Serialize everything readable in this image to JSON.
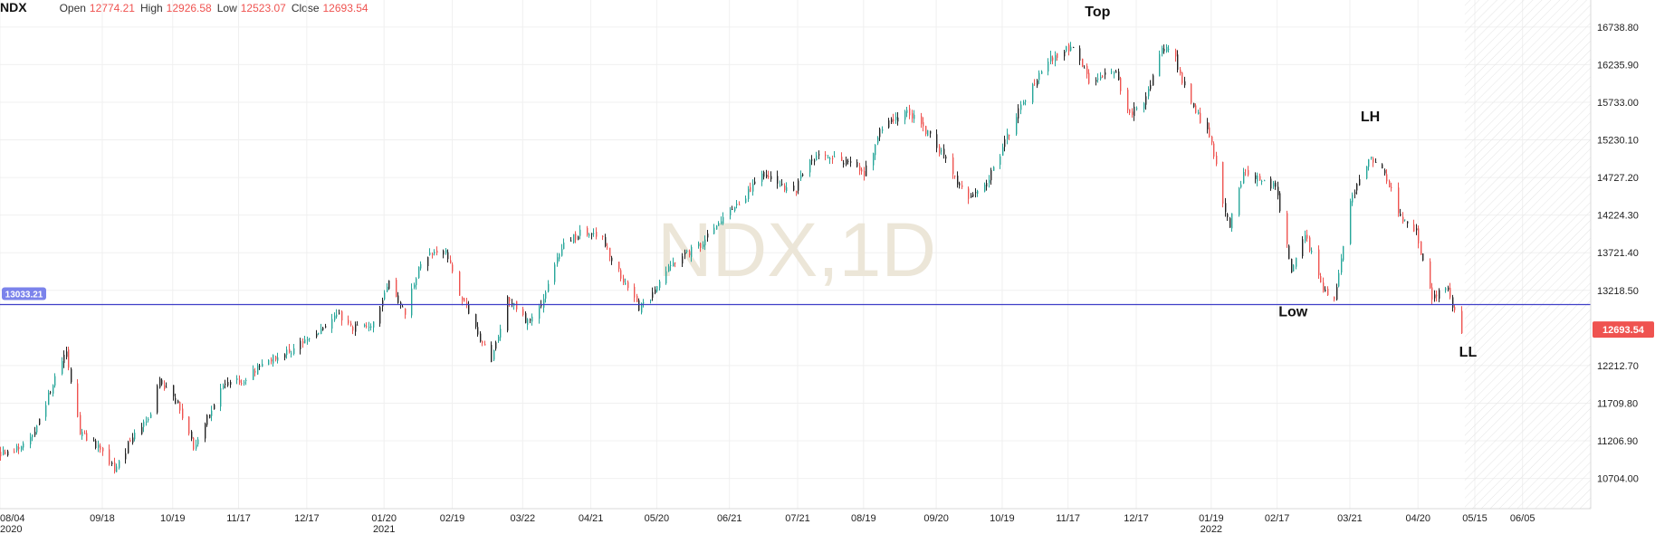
{
  "header": {
    "symbol": "NDX",
    "open_label": "Open",
    "open": "12774.21",
    "high_label": "High",
    "high": "12926.58",
    "low_label": "Low",
    "low": "12523.07",
    "close_label": "Close",
    "close": "12693.54"
  },
  "colors": {
    "up": "#26a69a",
    "down": "#ef5350",
    "neutral": "#222222",
    "level_line": "#3f3fc7",
    "level_badge": "#7b83eb",
    "price_badge": "#ef5350",
    "grid": "#f0f0f0",
    "watermark": "#ece6d8"
  },
  "chart_data": {
    "type": "candlestick",
    "symbol": "NDX",
    "watermark": "NDX,1D",
    "y_ticks": [
      "16738.80",
      "16235.90",
      "15733.00",
      "15230.10",
      "14727.20",
      "14224.30",
      "13721.40",
      "13218.50",
      "12212.70",
      "11709.80",
      "11206.90",
      "10704.00"
    ],
    "ylim": [
      10300,
      17100
    ],
    "x_ticks": [
      {
        "label": "08/04",
        "sub": "2020",
        "date": "2020-08-04"
      },
      {
        "label": "09/18",
        "sub": "",
        "date": "2020-09-18"
      },
      {
        "label": "10/19",
        "sub": "",
        "date": "2020-10-19"
      },
      {
        "label": "11/17",
        "sub": "",
        "date": "2020-11-17"
      },
      {
        "label": "12/17",
        "sub": "",
        "date": "2020-12-17"
      },
      {
        "label": "01/20",
        "sub": "2021",
        "date": "2021-01-20"
      },
      {
        "label": "02/19",
        "sub": "",
        "date": "2021-02-19"
      },
      {
        "label": "03/22",
        "sub": "",
        "date": "2021-03-22"
      },
      {
        "label": "04/21",
        "sub": "",
        "date": "2021-04-21"
      },
      {
        "label": "05/20",
        "sub": "",
        "date": "2021-05-20"
      },
      {
        "label": "06/21",
        "sub": "",
        "date": "2021-06-21"
      },
      {
        "label": "07/21",
        "sub": "",
        "date": "2021-07-21"
      },
      {
        "label": "08/19",
        "sub": "",
        "date": "2021-08-19"
      },
      {
        "label": "09/20",
        "sub": "",
        "date": "2021-09-20"
      },
      {
        "label": "10/19",
        "sub": "",
        "date": "2021-10-19"
      },
      {
        "label": "11/17",
        "sub": "",
        "date": "2021-11-17"
      },
      {
        "label": "12/17",
        "sub": "",
        "date": "2021-12-17"
      },
      {
        "label": "01/19",
        "sub": "2022",
        "date": "2022-01-19"
      },
      {
        "label": "02/17",
        "sub": "",
        "date": "2022-02-17"
      },
      {
        "label": "03/21",
        "sub": "",
        "date": "2022-03-21"
      },
      {
        "label": "04/20",
        "sub": "",
        "date": "2022-04-20"
      },
      {
        "label": "05/15",
        "sub": "",
        "date": "2022-05-15"
      },
      {
        "label": "06/05",
        "sub": "",
        "date": "2022-06-05"
      }
    ],
    "x_range": [
      "2020-08-04",
      "2022-07-05"
    ],
    "last_date": "2022-05-09",
    "close_path": [
      [
        "2020-08-04",
        11050
      ],
      [
        "2020-08-10",
        11080
      ],
      [
        "2020-08-18",
        11300
      ],
      [
        "2020-08-25",
        11800
      ],
      [
        "2020-09-02",
        12400
      ],
      [
        "2020-09-08",
        11300
      ],
      [
        "2020-09-14",
        11200
      ],
      [
        "2020-09-23",
        10800
      ],
      [
        "2020-09-30",
        11200
      ],
      [
        "2020-10-08",
        11500
      ],
      [
        "2020-10-13",
        12000
      ],
      [
        "2020-10-21",
        11700
      ],
      [
        "2020-10-28",
        11100
      ],
      [
        "2020-11-03",
        11500
      ],
      [
        "2020-11-09",
        11900
      ],
      [
        "2020-11-20",
        12050
      ],
      [
        "2020-12-01",
        12300
      ],
      [
        "2020-12-10",
        12400
      ],
      [
        "2020-12-18",
        12600
      ],
      [
        "2020-12-31",
        12900
      ],
      [
        "2021-01-06",
        12700
      ],
      [
        "2021-01-15",
        12800
      ],
      [
        "2021-01-22",
        13300
      ],
      [
        "2021-01-29",
        12900
      ],
      [
        "2021-02-05",
        13600
      ],
      [
        "2021-02-15",
        13800
      ],
      [
        "2021-02-22",
        13200
      ],
      [
        "2021-03-04",
        12500
      ],
      [
        "2021-03-08",
        12300
      ],
      [
        "2021-03-15",
        13100
      ],
      [
        "2021-03-24",
        12800
      ],
      [
        "2021-03-31",
        13100
      ],
      [
        "2021-04-08",
        13800
      ],
      [
        "2021-04-16",
        14000
      ],
      [
        "2021-04-26",
        13900
      ],
      [
        "2021-05-04",
        13400
      ],
      [
        "2021-05-12",
        13000
      ],
      [
        "2021-05-19",
        13200
      ],
      [
        "2021-05-27",
        13600
      ],
      [
        "2021-06-07",
        13800
      ],
      [
        "2021-06-16",
        14100
      ],
      [
        "2021-06-25",
        14400
      ],
      [
        "2021-07-07",
        14800
      ],
      [
        "2021-07-19",
        14500
      ],
      [
        "2021-07-26",
        15000
      ],
      [
        "2021-08-06",
        15000
      ],
      [
        "2021-08-19",
        14800
      ],
      [
        "2021-08-27",
        15400
      ],
      [
        "2021-09-07",
        15600
      ],
      [
        "2021-09-14",
        15400
      ],
      [
        "2021-09-21",
        15100
      ],
      [
        "2021-09-30",
        14600
      ],
      [
        "2021-10-04",
        14400
      ],
      [
        "2021-10-13",
        14700
      ],
      [
        "2021-10-20",
        15200
      ],
      [
        "2021-10-29",
        15800
      ],
      [
        "2021-11-09",
        16300
      ],
      [
        "2021-11-19",
        16500
      ],
      [
        "2021-11-26",
        16000
      ],
      [
        "2021-12-01",
        16100
      ],
      [
        "2021-12-08",
        16100
      ],
      [
        "2021-12-14",
        15600
      ],
      [
        "2021-12-20",
        15700
      ],
      [
        "2021-12-28",
        16500
      ],
      [
        "2022-01-03",
        16300
      ],
      [
        "2022-01-10",
        15700
      ],
      [
        "2022-01-18",
        15300
      ],
      [
        "2022-01-24",
        14400
      ],
      [
        "2022-01-27",
        14100
      ],
      [
        "2022-02-02",
        14800
      ],
      [
        "2022-02-10",
        14700
      ],
      [
        "2022-02-16",
        14600
      ],
      [
        "2022-02-23",
        13500
      ],
      [
        "2022-03-01",
        14000
      ],
      [
        "2022-03-08",
        13300
      ],
      [
        "2022-03-14",
        13100
      ],
      [
        "2022-03-21",
        14400
      ],
      [
        "2022-03-29",
        15000
      ],
      [
        "2022-04-05",
        14800
      ],
      [
        "2022-04-12",
        14200
      ],
      [
        "2022-04-19",
        14000
      ],
      [
        "2022-04-26",
        13100
      ],
      [
        "2022-05-02",
        13300
      ],
      [
        "2022-05-09",
        12693.54
      ]
    ],
    "hlines": [
      {
        "value": 13033.21,
        "label": "13033.21"
      }
    ],
    "last_price": {
      "value": 12693.54,
      "label": "12693.54"
    },
    "annotations": [
      {
        "text": "Top",
        "date": "2021-11-30",
        "value": 16880
      },
      {
        "text": "LH",
        "date": "2022-03-30",
        "value": 15480
      },
      {
        "text": "Low",
        "date": "2022-02-24",
        "value": 12870
      },
      {
        "text": "LL",
        "date": "2022-05-12",
        "value": 12330
      }
    ]
  }
}
